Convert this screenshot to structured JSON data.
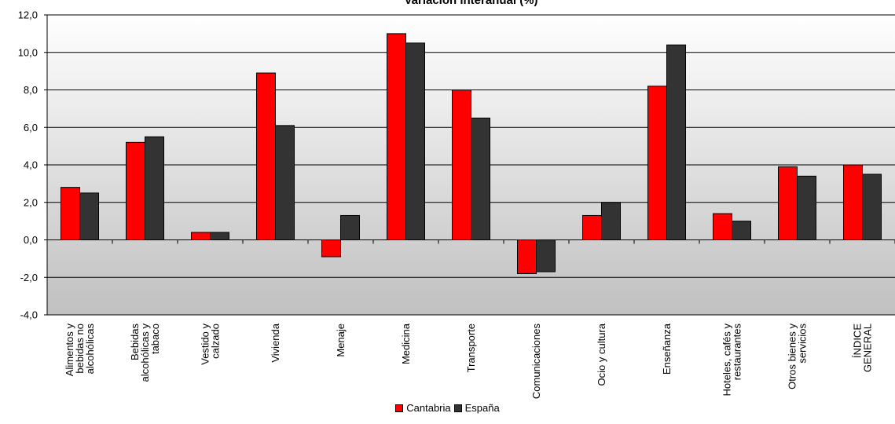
{
  "chart_data": {
    "type": "bar",
    "title": "Variación interanual (%)",
    "xlabel": "",
    "ylabel": "",
    "ylim": [
      -4,
      12
    ],
    "yticks": [
      "-4,0",
      "-2,0",
      "0,0",
      "2,0",
      "4,0",
      "6,0",
      "8,0",
      "10,0",
      "12,0"
    ],
    "grid": true,
    "legend_position": "bottom",
    "categories": [
      [
        "Alimentos y",
        "bebidas no",
        "alcohólicas"
      ],
      [
        "Bebidas",
        "alcohólicas y",
        "tabaco"
      ],
      [
        "Vestido y",
        "calzado"
      ],
      [
        "Vivienda"
      ],
      [
        "Menaje"
      ],
      [
        "Medicina"
      ],
      [
        "Transporte"
      ],
      [
        "Comunicaciones"
      ],
      [
        "Ocio y cultura"
      ],
      [
        "Enseñanza"
      ],
      [
        "Hoteles, cafés y",
        "restaurantes"
      ],
      [
        "Otros bienes y",
        "servicios"
      ],
      [
        "ÍNDICE",
        "GENERAL"
      ]
    ],
    "series": [
      {
        "name": "Cantabria",
        "color": "#ff0000",
        "values": [
          2.8,
          5.2,
          0.4,
          8.9,
          -0.9,
          11.0,
          8.0,
          -1.8,
          1.3,
          8.2,
          1.4,
          3.9,
          4.0
        ]
      },
      {
        "name": "España",
        "color": "#333333",
        "values": [
          2.5,
          5.5,
          0.4,
          6.1,
          1.3,
          10.5,
          6.5,
          -1.7,
          2.0,
          10.4,
          1.0,
          3.4,
          3.5
        ]
      }
    ]
  }
}
